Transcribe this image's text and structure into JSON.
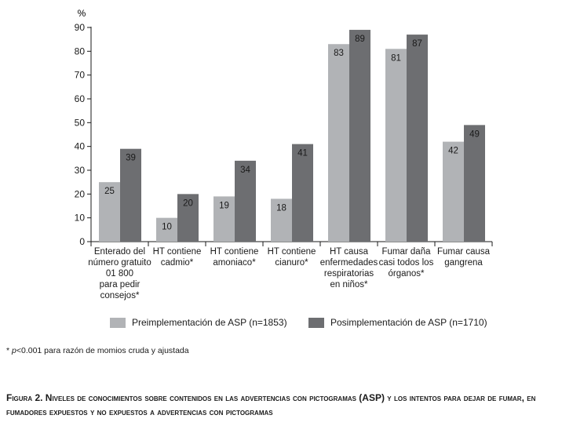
{
  "chart_data": {
    "type": "bar",
    "ylabel": "%",
    "ylim": [
      0,
      90
    ],
    "yticks": [
      "0",
      "10",
      "20",
      "30",
      "40",
      "50",
      "60",
      "70",
      "80",
      "90"
    ],
    "categories": [
      "Enterado del número gratuito 01 800 para pedir consejos*",
      "HT contiene cadmio*",
      "HT contiene amoniaco*",
      "HT contiene cianuro*",
      "HT causa enfermedades respiratorias en niños*",
      "Fumar daña casi todos los órganos*",
      "Fumar causa gangrena"
    ],
    "category_lines": [
      [
        "Enterado del",
        "número gratuito",
        "01 800",
        "para pedir",
        "consejos*"
      ],
      [
        "HT contiene",
        "cadmio*"
      ],
      [
        "HT contiene",
        "amoniaco*"
      ],
      [
        "HT contiene",
        "cianuro*"
      ],
      [
        "HT causa",
        "enfermedades",
        "respiratorias",
        "en niños*"
      ],
      [
        "Fumar daña",
        "casi todos los",
        "órganos*"
      ],
      [
        "Fumar causa",
        "gangrena"
      ]
    ],
    "series": [
      {
        "name": "Preimplementación de ASP (n=1853)",
        "color": "#b1b3b6",
        "values": [
          25,
          10,
          19,
          18,
          83,
          81,
          42
        ]
      },
      {
        "name": "Posimplementación de ASP (n=1710)",
        "color": "#6d6e71",
        "values": [
          39,
          20,
          34,
          41,
          89,
          87,
          49
        ]
      }
    ]
  },
  "footnote": {
    "star": "*",
    "p": "p",
    "text": "<0.001 para razón de momios cruda y ajustada"
  },
  "caption": "Figura 2. Niveles de conocimientos sobre contenidos en las advertencias con pictogramas (ASP) y los intentos para dejar de fumar, en fumadores expuestos y no expuestos a advertencias con pictogramas"
}
